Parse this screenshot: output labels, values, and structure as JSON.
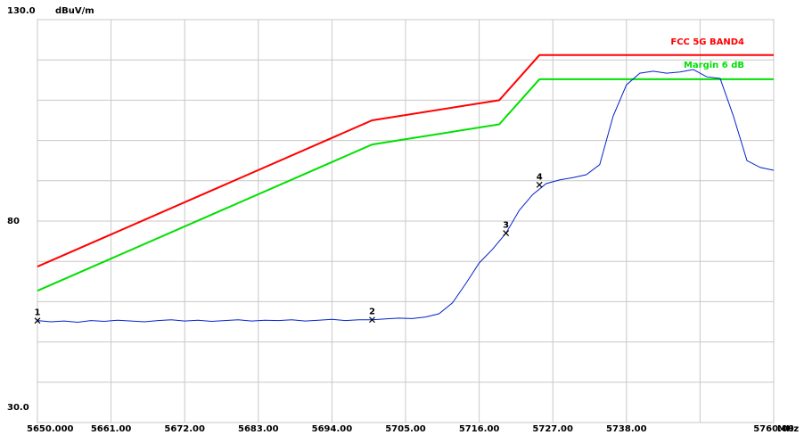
{
  "chart_data": {
    "type": "line",
    "y_unit": "dBuV/m",
    "x_unit": "MHz",
    "xlim": [
      5650,
      5760
    ],
    "ylim": [
      30,
      130
    ],
    "xticks": [
      {
        "value": 5650,
        "label": "5650.000"
      },
      {
        "value": 5661,
        "label": "5661.00"
      },
      {
        "value": 5672,
        "label": "5672.00"
      },
      {
        "value": 5683,
        "label": "5683.00"
      },
      {
        "value": 5694,
        "label": "5694.00"
      },
      {
        "value": 5705,
        "label": "5705.00"
      },
      {
        "value": 5716,
        "label": "5716.00"
      },
      {
        "value": 5727,
        "label": "5727.00"
      },
      {
        "value": 5738,
        "label": "5738.00"
      },
      {
        "value": 5749,
        "label": ""
      },
      {
        "value": 5760,
        "label": "5760.00"
      }
    ],
    "yticks": [
      {
        "value": 30,
        "label": "30.0"
      },
      80,
      {
        "value": 130,
        "label": "130.0"
      }
    ],
    "ygrid": [
      30,
      40,
      50,
      60,
      70,
      80,
      90,
      100,
      110,
      120,
      130
    ],
    "grid": true,
    "series": [
      {
        "name": "FCC 5G BAND4",
        "color": "#ff0000",
        "x": [
          5650,
          5700,
          5719,
          5725,
          5760
        ],
        "values": [
          68.7,
          105,
          110,
          121.2,
          121.2
        ]
      },
      {
        "name": "Margin 6 dB",
        "color": "#00e000",
        "x": [
          5650,
          5700,
          5719,
          5725,
          5760
        ],
        "values": [
          62.7,
          99,
          104,
          115.2,
          115.2
        ]
      },
      {
        "color": "#0022cc",
        "x": [
          5650,
          5652,
          5654,
          5656,
          5658,
          5660,
          5662,
          5664,
          5666,
          5668,
          5670,
          5672,
          5674,
          5676,
          5678,
          5680,
          5682,
          5684,
          5686,
          5688,
          5690,
          5692,
          5694,
          5696,
          5698,
          5700,
          5702,
          5704,
          5706,
          5708,
          5710,
          5712,
          5714,
          5716,
          5718,
          5720,
          5722,
          5724,
          5726,
          5728,
          5730,
          5732,
          5734,
          5736,
          5738,
          5740,
          5742,
          5744,
          5746,
          5748,
          5750,
          5752,
          5754,
          5756,
          5758,
          5760
        ],
        "values": [
          55.3,
          55.0,
          55.2,
          54.9,
          55.3,
          55.1,
          55.4,
          55.2,
          55.0,
          55.3,
          55.5,
          55.2,
          55.4,
          55.1,
          55.3,
          55.5,
          55.2,
          55.4,
          55.3,
          55.5,
          55.2,
          55.4,
          55.6,
          55.3,
          55.5,
          55.5,
          55.7,
          55.9,
          55.8,
          56.2,
          57.0,
          59.7,
          64.5,
          69.6,
          73.0,
          77.0,
          82.7,
          86.6,
          89.3,
          90.2,
          90.8,
          91.5,
          94.0,
          106.0,
          113.8,
          116.7,
          117.2,
          116.7,
          117.0,
          117.6,
          115.8,
          115.4,
          106.0,
          95.0,
          93.3,
          92.6
        ]
      }
    ],
    "markers": [
      {
        "label": "1",
        "x": 5650,
        "y": 55.3
      },
      {
        "label": "2",
        "x": 5700,
        "y": 55.5
      },
      {
        "label": "3",
        "x": 5720,
        "y": 77.0
      },
      {
        "label": "4",
        "x": 5725,
        "y": 89.0
      }
    ]
  }
}
